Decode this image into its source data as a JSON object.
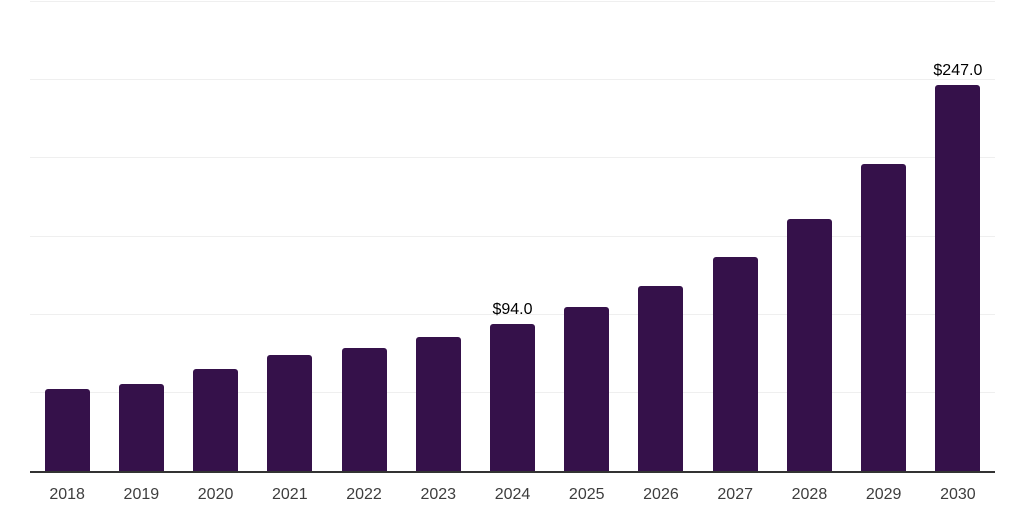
{
  "chart_data": {
    "type": "bar",
    "title": "",
    "categories": [
      "2018",
      "2019",
      "2020",
      "2021",
      "2022",
      "2023",
      "2024",
      "2025",
      "2026",
      "2027",
      "2028",
      "2029",
      "2030"
    ],
    "values": [
      52.4,
      55.9,
      65.4,
      74.0,
      78.8,
      85.7,
      94.0,
      105.1,
      118.1,
      136.9,
      161.3,
      196.3,
      247.0
    ],
    "data_labels": {
      "2024": "$94.0",
      "2030": "$247.0"
    },
    "ylim": [
      0,
      300
    ],
    "gridline_values": [
      50,
      100,
      150,
      200,
      250,
      300
    ],
    "grid": "horizontal",
    "legend_position": "none",
    "bar_color": "#35114a",
    "axis_line_color": "#333333",
    "gridline_color": "#efefef",
    "tick_label_color": "#3d3d3d",
    "data_label_color": "#000000",
    "background_color": "#ffffff"
  }
}
